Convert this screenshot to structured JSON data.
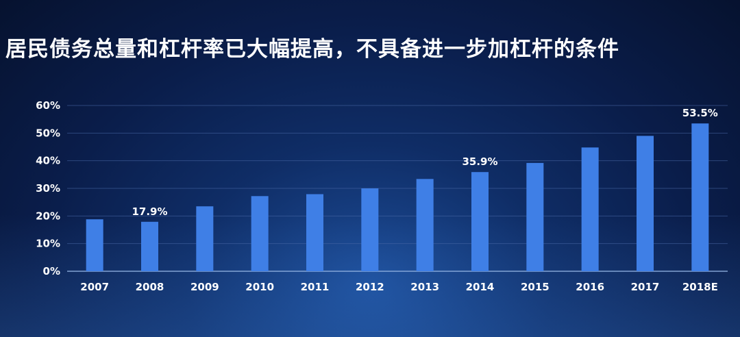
{
  "title": "居民债务总量和杠杆率已大幅提高，不具备进一步加杠杆的条件",
  "colors": {
    "bar": "#3f7fe6",
    "grid": "#4a6aa8",
    "axis": "#8fb0e0",
    "text": "#ffffff"
  },
  "chart_data": {
    "type": "bar",
    "title": "居民债务总量和杠杆率已大幅提高，不具备进一步加杠杆的条件",
    "xlabel": "",
    "ylabel": "",
    "categories": [
      "2007",
      "2008",
      "2009",
      "2010",
      "2011",
      "2012",
      "2013",
      "2014",
      "2015",
      "2016",
      "2017",
      "2018E"
    ],
    "values": [
      18.8,
      17.9,
      23.5,
      27.2,
      27.9,
      30.0,
      33.4,
      35.9,
      39.2,
      44.8,
      49.0,
      53.5
    ],
    "data_labels": [
      "",
      "17.9%",
      "",
      "",
      "",
      "",
      "",
      "35.9%",
      "",
      "",
      "",
      "53.5%"
    ],
    "ylim": [
      0,
      60
    ],
    "yticks": [
      0,
      10,
      20,
      30,
      40,
      50,
      60
    ],
    "ytick_labels": [
      "0%",
      "10%",
      "20%",
      "30%",
      "40%",
      "50%",
      "60%"
    ],
    "grid": true,
    "legend": "none"
  }
}
